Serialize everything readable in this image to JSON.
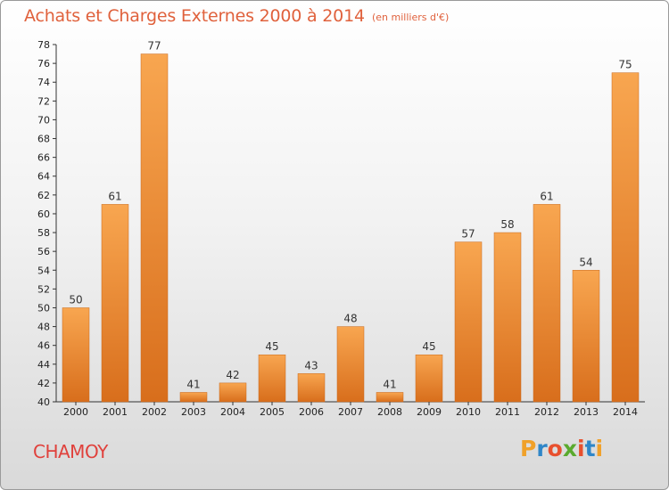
{
  "chart_data": {
    "type": "bar",
    "title": "Achats et Charges Externes 2000 à 2014",
    "subtitle": "(en milliers d'€)",
    "categories": [
      "2000",
      "2001",
      "2002",
      "2003",
      "2004",
      "2005",
      "2006",
      "2007",
      "2008",
      "2009",
      "2010",
      "2011",
      "2012",
      "2013",
      "2014"
    ],
    "values": [
      50,
      61,
      77,
      41,
      42,
      45,
      43,
      48,
      41,
      45,
      57,
      58,
      61,
      54,
      75
    ],
    "ylim": [
      40,
      78
    ],
    "ytick_step": 2,
    "grid": false,
    "legend": "none",
    "colors": {
      "bar_light": "#f8a650",
      "bar_dark": "#d86e1c",
      "title": "#e0613c"
    }
  },
  "place_name": "CHAMOY",
  "logo": {
    "letters": [
      "P",
      "r",
      "o",
      "x",
      "i",
      "t",
      "i"
    ],
    "colors": [
      "#f0a12a",
      "#2f86c8",
      "#e8502e",
      "#5aaa2e",
      "#e8502e",
      "#2f86c8",
      "#f0a12a"
    ]
  }
}
